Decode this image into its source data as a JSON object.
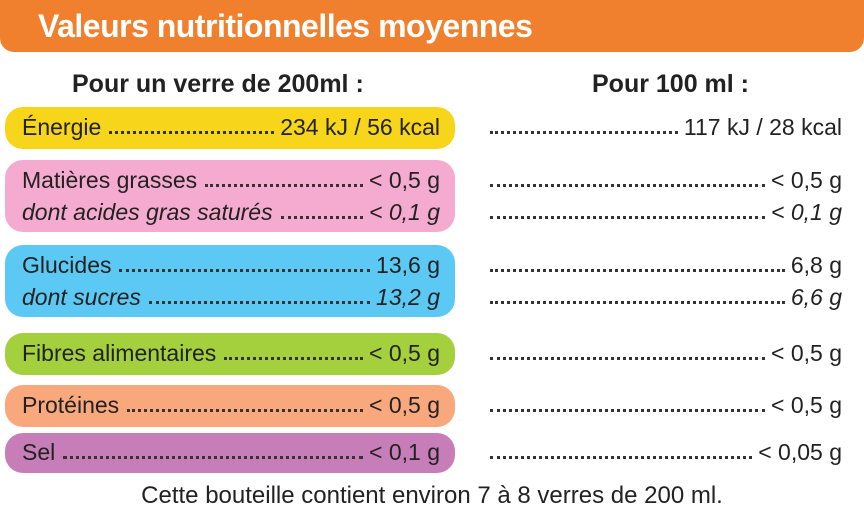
{
  "title": "Valeurs nutritionnelles moyennes",
  "headers": [
    "Pour un verre de 200ml :",
    "Pour 100 ml :"
  ],
  "rows": [
    {
      "label": "Énergie",
      "per_glass": "234 kJ / 56 kcal",
      "per_100ml": "117 kJ / 28 kcal",
      "color": "#f7d51a"
    },
    {
      "label": "Matières grasses",
      "per_glass": "< 0,5 g",
      "per_100ml": "< 0,5 g",
      "color": "#f5aad0",
      "sub": {
        "label": "dont acides gras saturés",
        "per_glass": "< 0,1 g",
        "per_100ml": "< 0,1 g"
      }
    },
    {
      "label": "Glucides",
      "per_glass": "13,6 g",
      "per_100ml": "6,8 g",
      "color": "#5cc9f5",
      "sub": {
        "label": "dont sucres",
        "per_glass": "13,2 g",
        "per_100ml": "6,6 g"
      }
    },
    {
      "label": "Fibres alimentaires",
      "per_glass": "< 0,5 g",
      "per_100ml": "< 0,5 g",
      "color": "#a5d03d"
    },
    {
      "label": "Protéines",
      "per_glass": "< 0,5 g",
      "per_100ml": "< 0,5 g",
      "color": "#f8a87c"
    },
    {
      "label": "Sel",
      "per_glass": "< 0,1 g",
      "per_100ml": "< 0,05 g",
      "color": "#c77db7"
    }
  ],
  "footer": "Cette bouteille contient environ 7 à 8 verres de 200 ml."
}
